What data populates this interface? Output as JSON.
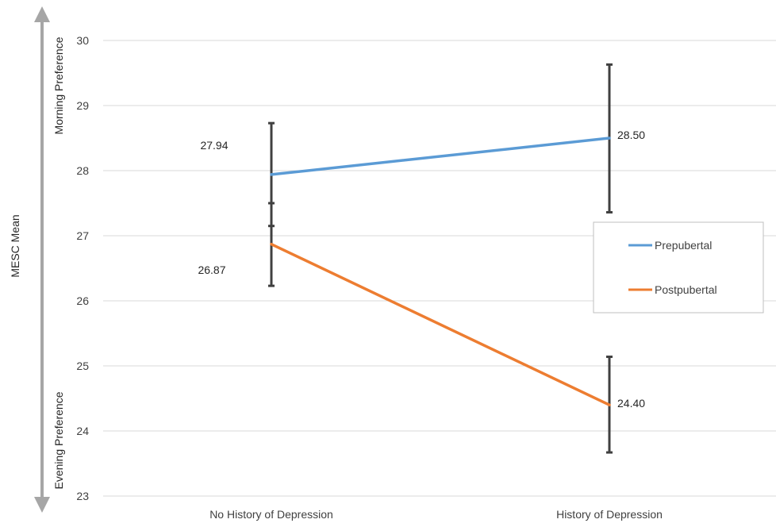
{
  "chart_data": {
    "type": "line",
    "title": "",
    "xlabel": "",
    "ylabel": "MESC Mean",
    "categories": [
      "No History of Depression",
      "History of Depression"
    ],
    "ylim": [
      23,
      30
    ],
    "yticks": [
      23,
      24,
      25,
      26,
      27,
      28,
      29,
      30
    ],
    "grid": true,
    "legend_position": "right",
    "y_arrow_labels": {
      "top": "Morning Preference",
      "bottom": "Evening Preference"
    },
    "series": [
      {
        "name": "Prepubertal",
        "color": "#5b9bd5",
        "values": [
          27.94,
          28.5
        ],
        "labels": [
          "27.94",
          "28.50"
        ],
        "error_low": [
          27.15,
          27.36
        ],
        "error_high": [
          28.73,
          29.63
        ]
      },
      {
        "name": "Postpubertal",
        "color": "#ed7d31",
        "values": [
          26.87,
          24.4
        ],
        "labels": [
          "26.87",
          "24.40"
        ],
        "error_low": [
          26.23,
          23.67
        ],
        "error_high": [
          27.5,
          25.14
        ]
      }
    ],
    "colors": {
      "grid": "#d9d9d9",
      "errorbar": "#404040",
      "arrow": "#a6a6a6",
      "legend_border": "#bfbfbf"
    }
  }
}
